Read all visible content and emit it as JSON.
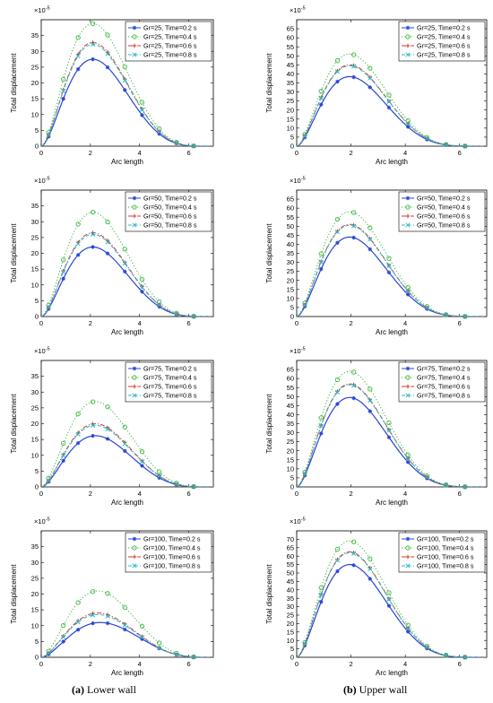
{
  "captions": {
    "lower": {
      "letter": "(a)",
      "text": "Lower wall"
    },
    "upper": {
      "letter": "(b)",
      "text": "Upper wall"
    }
  },
  "series_styles": [
    {
      "color": "#2a45d6",
      "line": "solid",
      "marker": "star"
    },
    {
      "color": "#3cb83c",
      "line": "dotted",
      "marker": "circle"
    },
    {
      "color": "#d23a2a",
      "line": "dashdot",
      "marker": "plus"
    },
    {
      "color": "#2ab8c8",
      "line": "dashed",
      "marker": "x"
    }
  ],
  "chart_data": [
    {
      "type": "line",
      "panel": "a-1",
      "xlabel": "Arc length",
      "ylabel": "Total displacement",
      "yscale_label": "×10",
      "yscale_exp": "-5",
      "xlim": [
        0,
        7
      ],
      "ylim": [
        0,
        40
      ],
      "xticks": [
        0,
        2,
        4,
        6
      ],
      "yticks": [
        0,
        5,
        10,
        15,
        20,
        25,
        30,
        35
      ],
      "legend_position": "top-right",
      "series": [
        {
          "name": "Gr=25, Time=0.2 s",
          "peak": 27.5,
          "peak_x": 2.1
        },
        {
          "name": "Gr=25, Time=0.4 s",
          "peak": 38.8,
          "peak_x": 2.1
        },
        {
          "name": "Gr=25, Time=0.6 s",
          "peak": 32.8,
          "peak_x": 2.1
        },
        {
          "name": "Gr=25, Time=0.8 s",
          "peak": 32.2,
          "peak_x": 2.1
        }
      ]
    },
    {
      "type": "line",
      "panel": "b-1",
      "xlabel": "Arc length",
      "ylabel": "Total displacement",
      "yscale_label": "×10",
      "yscale_exp": "-5",
      "xlim": [
        0,
        7
      ],
      "ylim": [
        0,
        70
      ],
      "xticks": [
        0,
        2,
        4,
        6
      ],
      "yticks": [
        0,
        5,
        10,
        15,
        20,
        25,
        30,
        35,
        40,
        45,
        50,
        55,
        60,
        65
      ],
      "legend_position": "top-right",
      "series": [
        {
          "name": "Gr=25, Time=0.2 s",
          "peak": 38.5,
          "peak_x": 1.95
        },
        {
          "name": "Gr=25, Time=0.4 s",
          "peak": 51,
          "peak_x": 1.95
        },
        {
          "name": "Gr=25, Time=0.6 s",
          "peak": 45,
          "peak_x": 1.95
        },
        {
          "name": "Gr=25, Time=0.8 s",
          "peak": 44.5,
          "peak_x": 1.95
        }
      ]
    },
    {
      "type": "line",
      "panel": "a-2",
      "xlabel": "Arc length",
      "ylabel": "Total displacement",
      "yscale_label": "×10",
      "yscale_exp": "-5",
      "xlim": [
        0,
        7
      ],
      "ylim": [
        0,
        40
      ],
      "xticks": [
        0,
        2,
        4,
        6
      ],
      "yticks": [
        0,
        5,
        10,
        15,
        20,
        25,
        30,
        35
      ],
      "legend_position": "top-right",
      "series": [
        {
          "name": "Gr=50, Time=0.2 s",
          "peak": 22,
          "peak_x": 2.1
        },
        {
          "name": "Gr=50, Time=0.4 s",
          "peak": 33,
          "peak_x": 2.1
        },
        {
          "name": "Gr=50, Time=0.6 s",
          "peak": 26.5,
          "peak_x": 2.1
        },
        {
          "name": "Gr=50, Time=0.8 s",
          "peak": 26,
          "peak_x": 2.1
        }
      ]
    },
    {
      "type": "line",
      "panel": "b-2",
      "xlabel": "Arc length",
      "ylabel": "Total displacement",
      "yscale_label": "×10",
      "yscale_exp": "-5",
      "xlim": [
        0,
        7
      ],
      "ylim": [
        0,
        70
      ],
      "xticks": [
        0,
        2,
        4,
        6
      ],
      "yticks": [
        0,
        5,
        10,
        15,
        20,
        25,
        30,
        35,
        40,
        45,
        50,
        55,
        60,
        65
      ],
      "legend_position": "top-right",
      "series": [
        {
          "name": "Gr=50, Time=0.2 s",
          "peak": 44,
          "peak_x": 1.95
        },
        {
          "name": "Gr=50, Time=0.4 s",
          "peak": 58,
          "peak_x": 1.95
        },
        {
          "name": "Gr=50, Time=0.6 s",
          "peak": 51,
          "peak_x": 1.95
        },
        {
          "name": "Gr=50, Time=0.8 s",
          "peak": 50.5,
          "peak_x": 1.95
        }
      ]
    },
    {
      "type": "line",
      "panel": "a-3",
      "xlabel": "Arc length",
      "ylabel": "Total displacement",
      "yscale_label": "×10",
      "yscale_exp": "-5",
      "xlim": [
        0,
        7
      ],
      "ylim": [
        0,
        40
      ],
      "xticks": [
        0,
        2,
        4,
        6
      ],
      "yticks": [
        0,
        5,
        10,
        15,
        20,
        25,
        30,
        35
      ],
      "legend_position": "top-right",
      "series": [
        {
          "name": "Gr=75, Time=0.2 s",
          "peak": 16.2,
          "peak_x": 2.2
        },
        {
          "name": "Gr=75, Time=0.4 s",
          "peak": 27,
          "peak_x": 2.2
        },
        {
          "name": "Gr=75, Time=0.6 s",
          "peak": 20,
          "peak_x": 2.2
        },
        {
          "name": "Gr=75, Time=0.8 s",
          "peak": 19.5,
          "peak_x": 2.2
        }
      ]
    },
    {
      "type": "line",
      "panel": "b-3",
      "xlabel": "Arc length",
      "ylabel": "Total displacement",
      "yscale_label": "×10",
      "yscale_exp": "-5",
      "xlim": [
        0,
        7
      ],
      "ylim": [
        0,
        70
      ],
      "xticks": [
        0,
        2,
        4,
        6
      ],
      "yticks": [
        0,
        5,
        10,
        15,
        20,
        25,
        30,
        35,
        40,
        45,
        50,
        55,
        60,
        65
      ],
      "legend_position": "top-right",
      "series": [
        {
          "name": "Gr=75, Time=0.2 s",
          "peak": 49.5,
          "peak_x": 1.95
        },
        {
          "name": "Gr=75, Time=0.4 s",
          "peak": 64,
          "peak_x": 1.95
        },
        {
          "name": "Gr=75, Time=0.6 s",
          "peak": 57,
          "peak_x": 1.95
        },
        {
          "name": "Gr=75, Time=0.8 s",
          "peak": 56.5,
          "peak_x": 1.95
        }
      ]
    },
    {
      "type": "line",
      "panel": "a-4",
      "xlabel": "Arc length",
      "ylabel": "Total displacement",
      "yscale_label": "×10",
      "yscale_exp": "-5",
      "xlim": [
        0,
        7
      ],
      "ylim": [
        0,
        40
      ],
      "xticks": [
        0,
        2,
        4,
        6
      ],
      "yticks": [
        0,
        5,
        10,
        15,
        20,
        25,
        30,
        35
      ],
      "legend_position": "top-right",
      "series": [
        {
          "name": "Gr=100, Time=0.2 s",
          "peak": 11,
          "peak_x": 2.4
        },
        {
          "name": "Gr=100, Time=0.4 s",
          "peak": 21,
          "peak_x": 2.3
        },
        {
          "name": "Gr=100, Time=0.6 s",
          "peak": 14,
          "peak_x": 2.3
        },
        {
          "name": "Gr=100, Time=0.8 s",
          "peak": 13.5,
          "peak_x": 2.3
        }
      ]
    },
    {
      "type": "line",
      "panel": "b-4",
      "xlabel": "Arc length",
      "ylabel": "Total displacement",
      "yscale_label": "×10",
      "yscale_exp": "-5",
      "xlim": [
        0,
        7
      ],
      "ylim": [
        0,
        75
      ],
      "xticks": [
        0,
        2,
        4,
        6
      ],
      "yticks": [
        0,
        5,
        10,
        15,
        20,
        25,
        30,
        35,
        40,
        45,
        50,
        55,
        60,
        65,
        70
      ],
      "legend_position": "top-right",
      "series": [
        {
          "name": "Gr=100, Time=0.2 s",
          "peak": 55,
          "peak_x": 1.95
        },
        {
          "name": "Gr=100, Time=0.4 s",
          "peak": 69,
          "peak_x": 1.95
        },
        {
          "name": "Gr=100, Time=0.6 s",
          "peak": 62.5,
          "peak_x": 1.95
        },
        {
          "name": "Gr=100, Time=0.8 s",
          "peak": 62,
          "peak_x": 1.95
        }
      ]
    }
  ]
}
